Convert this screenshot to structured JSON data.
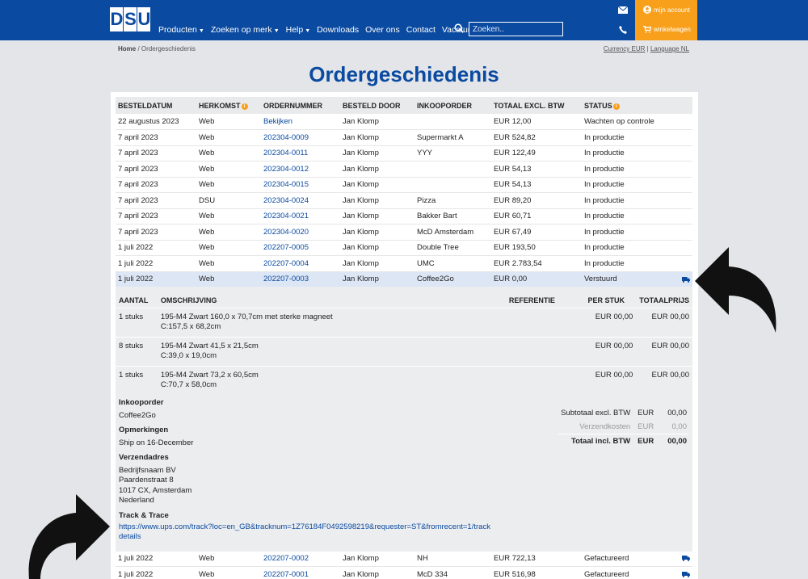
{
  "header": {
    "logo": [
      "D",
      "S",
      "U"
    ],
    "nav": [
      {
        "label": "Producten",
        "dropdown": true
      },
      {
        "label": "Zoeken op merk",
        "dropdown": true
      },
      {
        "label": "Help",
        "dropdown": true
      },
      {
        "label": "Downloads",
        "dropdown": false
      },
      {
        "label": "Over ons",
        "dropdown": false
      },
      {
        "label": "Contact",
        "dropdown": false
      },
      {
        "label": "Vacatures",
        "dropdown": false
      }
    ],
    "search_placeholder": "Zoeken..",
    "account_label": "mijn account",
    "cart_label": "winkelwagen",
    "colors": {
      "brand": "#0a4aa0",
      "accent": "#f8a01c"
    }
  },
  "breadcrumb": {
    "home": "Home",
    "separator": " / ",
    "current": "Ordergeschiedenis"
  },
  "prefs": {
    "currency": "Currency EUR",
    "separator": " | ",
    "language": "Language NL"
  },
  "title": "Ordergeschiedenis",
  "orders": {
    "columns": [
      "BESTELDATUM",
      "HERKOMST",
      "ORDERNUMMER",
      "BESTELD DOOR",
      "INKOOPORDER",
      "TOTAAL EXCL. BTW",
      "STATUS"
    ],
    "info_glyph": "i",
    "rows": [
      {
        "date": "22 augustus 2023",
        "origin": "Web",
        "number": "Bekijken",
        "by": "Jan Klomp",
        "po": "",
        "total": "EUR 12,00",
        "status": "Wachten op controle",
        "truck": false
      },
      {
        "date": "7 april 2023",
        "origin": "Web",
        "number": "202304-0009",
        "by": "Jan Klomp",
        "po": "Supermarkt A",
        "total": "EUR 524,82",
        "status": "In productie",
        "truck": false
      },
      {
        "date": "7 april 2023",
        "origin": "Web",
        "number": "202304-0011",
        "by": "Jan Klomp",
        "po": "YYY",
        "total": "EUR 122,49",
        "status": "In productie",
        "truck": false
      },
      {
        "date": "7 april 2023",
        "origin": "Web",
        "number": "202304-0012",
        "by": "Jan Klomp",
        "po": "",
        "total": "EUR 54,13",
        "status": "In productie",
        "truck": false
      },
      {
        "date": "7 april 2023",
        "origin": "Web",
        "number": "202304-0015",
        "by": "Jan Klomp",
        "po": "",
        "total": "EUR 54,13",
        "status": "In productie",
        "truck": false
      },
      {
        "date": "7 april 2023",
        "origin": "DSU",
        "number": "202304-0024",
        "by": "Jan Klomp",
        "po": "Pizza",
        "total": "EUR 89,20",
        "status": "In productie",
        "truck": false
      },
      {
        "date": "7 april 2023",
        "origin": "Web",
        "number": "202304-0021",
        "by": "Jan Klomp",
        "po": "Bakker Bart",
        "total": "EUR 60,71",
        "status": "In productie",
        "truck": false
      },
      {
        "date": "7 april 2023",
        "origin": "Web",
        "number": "202304-0020",
        "by": "Jan Klomp",
        "po": "McD Amsterdam",
        "total": "EUR 67,49",
        "status": "In productie",
        "truck": false
      },
      {
        "date": "1 juli 2022",
        "origin": "Web",
        "number": "202207-0005",
        "by": "Jan Klomp",
        "po": "Double Tree",
        "total": "EUR 193,50",
        "status": "In productie",
        "truck": false
      },
      {
        "date": "1 juli 2022",
        "origin": "Web",
        "number": "202207-0004",
        "by": "Jan Klomp",
        "po": "UMC",
        "total": "EUR 2.783,54",
        "status": "In productie",
        "truck": false
      },
      {
        "date": "1 juli 2022",
        "origin": "Web",
        "number": "202207-0003",
        "by": "Jan Klomp",
        "po": "Coffee2Go",
        "total": "EUR 0,00",
        "status": "Verstuurd",
        "truck": true,
        "selected": true
      }
    ],
    "rows_after": [
      {
        "date": "1 juli 2022",
        "origin": "Web",
        "number": "202207-0002",
        "by": "Jan Klomp",
        "po": "NH",
        "total": "EUR 722,13",
        "status": "Gefactureerd",
        "truck": true
      },
      {
        "date": "1 juli 2022",
        "origin": "Web",
        "number": "202207-0001",
        "by": "Jan Klomp",
        "po": "McD 334",
        "total": "EUR 516,98",
        "status": "Gefactureerd",
        "truck": true
      }
    ]
  },
  "detail": {
    "columns": [
      "AANTAL",
      "OMSCHRIJVING",
      "REFERENTIE",
      "PER STUK",
      "TOTAALPRIJS"
    ],
    "items": [
      {
        "qty": "1 stuks",
        "desc1": "195-M4 Zwart 160,0 x 70,7cm met sterke magneet",
        "desc2": "C:157,5 x 68,2cm",
        "ref": "",
        "each": "EUR 00,00",
        "total": "EUR 00,00"
      },
      {
        "qty": "8 stuks",
        "desc1": "195-M4 Zwart 41,5 x 21,5cm",
        "desc2": "C:39,0 x 19,0cm",
        "ref": "",
        "each": "EUR 00,00",
        "total": "EUR 00,00"
      },
      {
        "qty": "1 stuks",
        "desc1": "195-M4 Zwart 73,2 x 60,5cm",
        "desc2": "C:70,7 x 58,0cm",
        "ref": "",
        "each": "EUR 00,00",
        "total": "EUR 00,00"
      }
    ],
    "po_label": "Inkooporder",
    "po_value": "Coffee2Go",
    "remarks_label": "Opmerkingen",
    "remarks_value": "Ship on 16-December",
    "address_label": "Verzendadres",
    "address": [
      "Bedrijfsnaam BV",
      "Paardenstraat 8",
      "1017 CX, Amsterdam",
      "Nederland"
    ],
    "track_label": "Track & Trace",
    "track_url": "https://www.ups.com/track?loc=en_GB&tracknum=1Z76184F0492598219&requester=ST&fromrecent=1/track",
    "track_url_2": "details",
    "totals": [
      {
        "label": "Subtotaal excl. BTW",
        "cur": "EUR",
        "value": "00,00",
        "kind": "normal"
      },
      {
        "label": "Verzendkosten",
        "cur": "EUR",
        "value": "0,00",
        "kind": "muted"
      },
      {
        "label": "Totaal incl. BTW",
        "cur": "EUR",
        "value": "00,00",
        "kind": "strong"
      }
    ]
  }
}
